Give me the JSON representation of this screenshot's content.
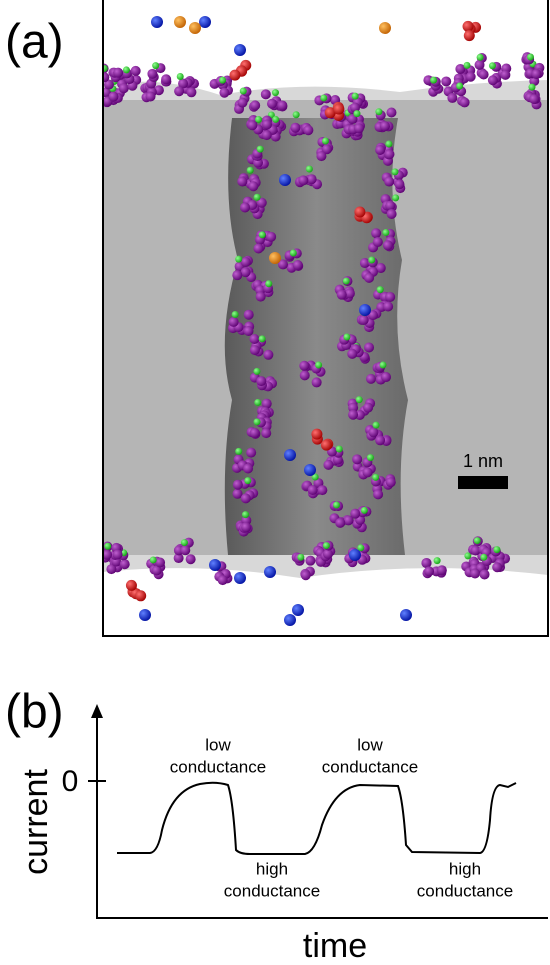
{
  "panel_a": {
    "label": "(a)",
    "scale_bar": "1 nm"
  },
  "panel_b": {
    "label": "(b)",
    "y_axis_label": "current",
    "x_axis_label": "time",
    "zero_label": "0",
    "annotations": [
      {
        "lines": [
          "low",
          "conductance"
        ]
      },
      {
        "lines": [
          "high",
          "conductance"
        ]
      },
      {
        "lines": [
          "low",
          "conductance"
        ]
      },
      {
        "lines": [
          "high",
          "conductance"
        ]
      }
    ]
  }
}
